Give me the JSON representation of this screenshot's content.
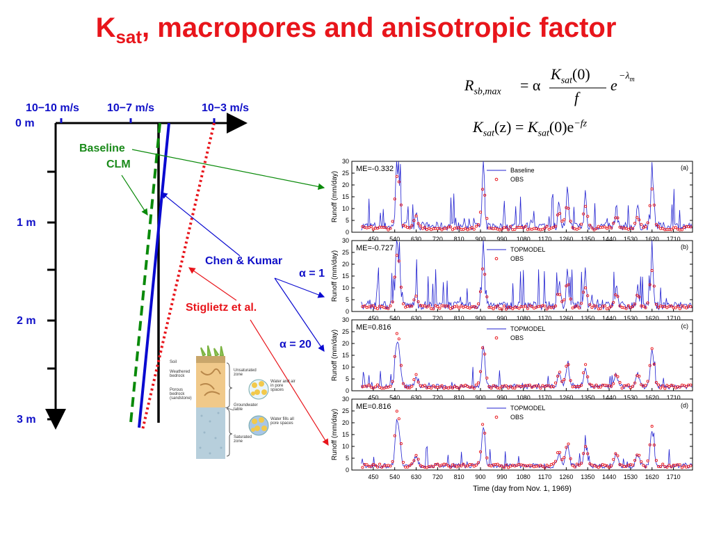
{
  "title": {
    "k": "K",
    "sub": "sat",
    "rest": ", macropores and anisotropic factor"
  },
  "formulas": {
    "f1_lhs": "R",
    "f1_lhs_sub": "sb,max",
    "f1_eq": "= α",
    "f1_num": "K",
    "f1_num_sub": "sat",
    "f1_num_arg": "(0)",
    "f1_den": "f",
    "f1_exp_base": "e",
    "f1_exp": "−λ",
    "f1_exp_sub": "m",
    "f2_a": "K",
    "f2_a_sub": "sat",
    "f2_a_arg": "(z) = ",
    "f2_b": "K",
    "f2_b_sub": "sat",
    "f2_b_arg": "(0)e",
    "f2_exp": "−fz"
  },
  "profile": {
    "axis_ticks_top": [
      "10−10 m/s",
      "10−7 m/s",
      "10−3 m/s"
    ],
    "depth_labels": [
      "0 m",
      "1 m",
      "2 m",
      "3 m"
    ],
    "labels": {
      "baseline": "Baseline",
      "clm": "CLM",
      "chen_kumar": "Chen & Kumar",
      "stiglietz": "Stiglietz et al.",
      "alpha1": "α = 1",
      "alpha20": "α = 20"
    },
    "colors": {
      "baseline": "#0a8a0a",
      "chen_kumar": "#0a0ad0",
      "stiglietz": "#e8151b",
      "axis": "#000000"
    }
  },
  "soil_diagram": {
    "left_labels": [
      "Soil",
      "Weathered bedrock",
      "Porous bedrock (sandstone)"
    ],
    "right_labels": [
      "Unsaturated zone",
      "Water and air in pore spaces",
      "Groundwater table",
      "Water fills all pore spaces",
      "Saturated zone"
    ]
  },
  "runoff_panels": {
    "y_label": "Runoff (mm/day)",
    "x_label": "Time (day from Nov. 1, 1969)",
    "x_ticks": [
      "450",
      "540",
      "630",
      "720",
      "810",
      "900",
      "990",
      "1080",
      "1170",
      "1260",
      "1350",
      "1440",
      "1530",
      "1620",
      "1710"
    ],
    "y_ticks": [
      "0",
      "5",
      "10",
      "15",
      "20",
      "25",
      "30"
    ],
    "panels": [
      {
        "id": "(a)",
        "me": "ME=-0.332",
        "model": "Baseline",
        "obs": "OBS"
      },
      {
        "id": "(b)",
        "me": "ME=-0.727",
        "model": "TOPMODEL",
        "obs": "OBS"
      },
      {
        "id": "(c)",
        "me": "ME=0.816",
        "model": "TOPMODEL",
        "obs": "OBS"
      },
      {
        "id": "(d)",
        "me": "ME=0.816",
        "model": "TOPMODEL",
        "obs": "OBS"
      }
    ]
  }
}
